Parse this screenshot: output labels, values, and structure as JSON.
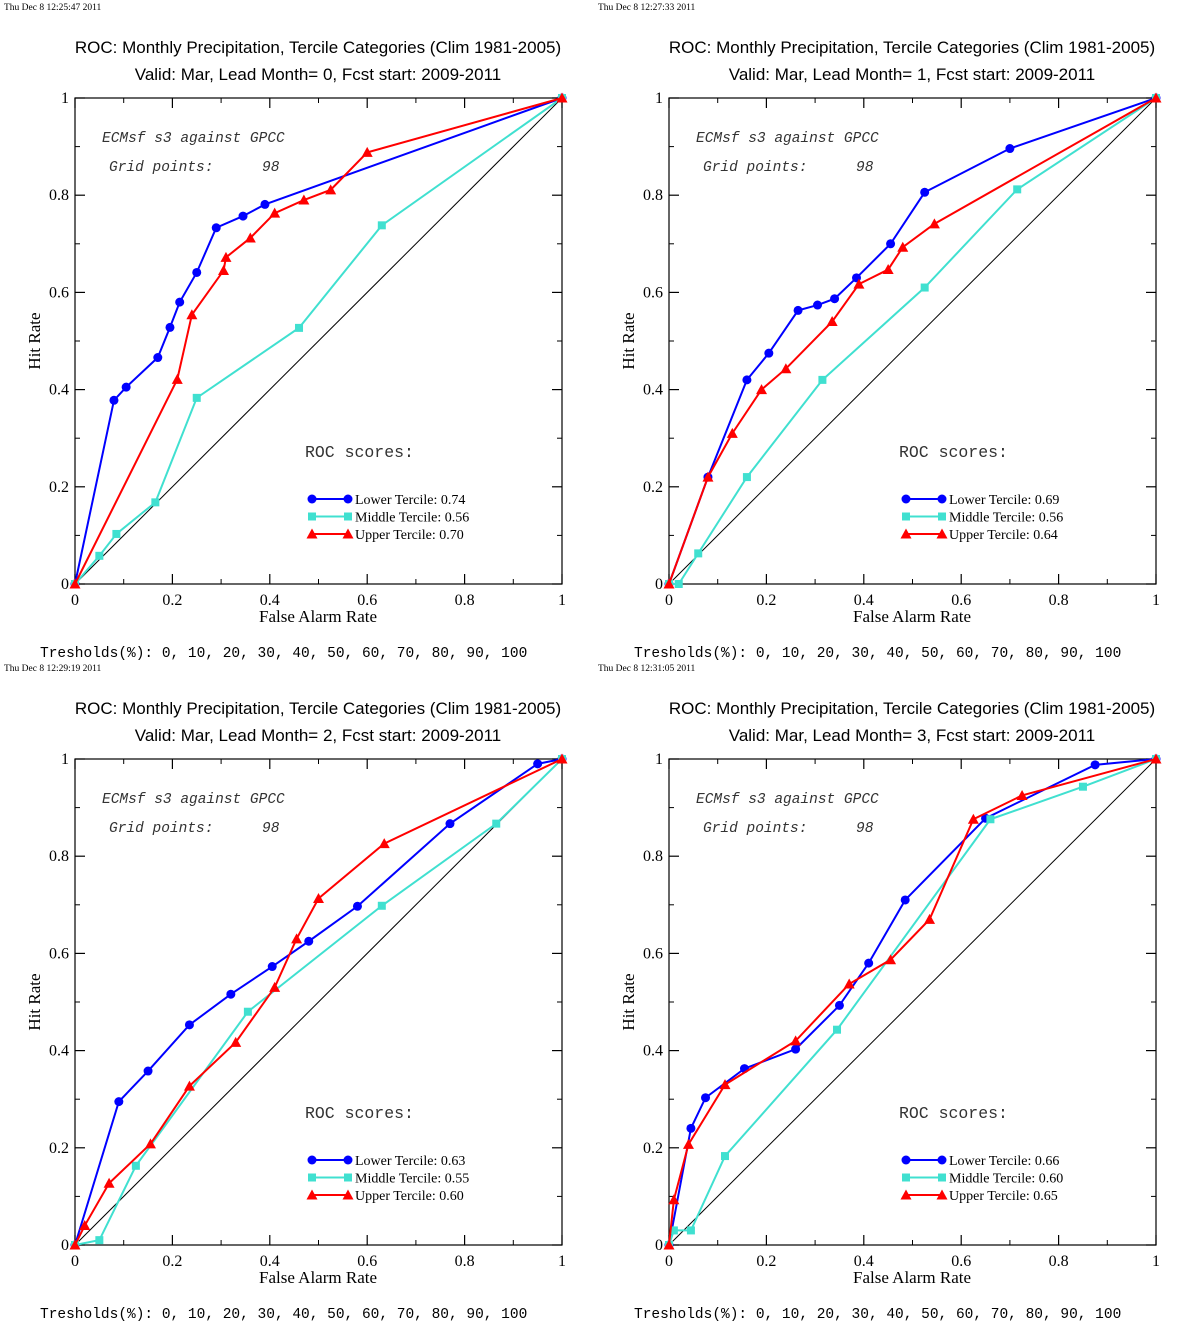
{
  "colors": {
    "lower": "#0000ff",
    "middle": "#40e0d0",
    "upper": "#ff0000",
    "axis": "#000000",
    "diagonal": "#000000"
  },
  "chart_data": [
    {
      "type": "line",
      "timestamp": "Thu Dec  8 12:25:47 2011",
      "title": "ROC: Monthly Precipitation, Tercile Categories (Clim 1981-2005)",
      "subtitle": "Valid: Mar, Lead Month= 0, Fcst start: 2009-2011",
      "xlabel": "False Alarm Rate",
      "ylabel": "Hit Rate",
      "xlim": [
        0,
        1
      ],
      "ylim": [
        0,
        1
      ],
      "x_ticks": [
        "0",
        "0.2",
        "0.4",
        "0.6",
        "0.8",
        "1"
      ],
      "y_ticks": [
        "0",
        "0.2",
        "0.4",
        "0.6",
        "0.8",
        "1"
      ],
      "annotation_model": "ECMsf s3 against GPCC",
      "annotation_grid_label": "Grid points:",
      "annotation_grid_value": "98",
      "scores_heading": "ROC scores:",
      "thresholds": "Tresholds(%): 0, 10, 20, 30, 40, 50, 60, 70, 80, 90, 100",
      "series": [
        {
          "name": "Lower Tercile: 0.74",
          "key": "lower",
          "marker": "circle",
          "x": [
            0,
            0.08,
            0.105,
            0.17,
            0.195,
            0.215,
            0.25,
            0.29,
            0.345,
            0.39,
            1
          ],
          "y": [
            0,
            0.378,
            0.405,
            0.466,
            0.528,
            0.58,
            0.641,
            0.733,
            0.757,
            0.781,
            1
          ]
        },
        {
          "name": "Middle Tercile: 0.56",
          "key": "middle",
          "marker": "square",
          "x": [
            0,
            0.05,
            0.085,
            0.165,
            0.25,
            0.46,
            0.63,
            1
          ],
          "y": [
            0,
            0.058,
            0.103,
            0.168,
            0.383,
            0.527,
            0.738,
            1
          ]
        },
        {
          "name": "Upper Tercile: 0.70",
          "key": "upper",
          "marker": "triangle",
          "x": [
            0,
            0.21,
            0.24,
            0.305,
            0.31,
            0.36,
            0.41,
            0.47,
            0.525,
            0.6,
            1
          ],
          "y": [
            0,
            0.421,
            0.554,
            0.645,
            0.672,
            0.712,
            0.763,
            0.79,
            0.811,
            0.888,
            1
          ]
        }
      ]
    },
    {
      "type": "line",
      "timestamp": "Thu Dec  8 12:27:33 2011",
      "title": "ROC: Monthly Precipitation, Tercile Categories (Clim 1981-2005)",
      "subtitle": "Valid: Mar, Lead Month= 1, Fcst start: 2009-2011",
      "xlabel": "False Alarm Rate",
      "ylabel": "Hit Rate",
      "xlim": [
        0,
        1
      ],
      "ylim": [
        0,
        1
      ],
      "x_ticks": [
        "0",
        "0.2",
        "0.4",
        "0.6",
        "0.8",
        "1"
      ],
      "y_ticks": [
        "0",
        "0.2",
        "0.4",
        "0.6",
        "0.8",
        "1"
      ],
      "annotation_model": "ECMsf s3 against GPCC",
      "annotation_grid_label": "Grid points:",
      "annotation_grid_value": "98",
      "scores_heading": "ROC scores:",
      "thresholds": "Tresholds(%): 0, 10, 20, 30, 40, 50, 60, 70, 80, 90, 100",
      "series": [
        {
          "name": "Lower Tercile: 0.69",
          "key": "lower",
          "marker": "circle",
          "x": [
            0,
            0.08,
            0.16,
            0.205,
            0.265,
            0.305,
            0.34,
            0.385,
            0.455,
            0.525,
            0.7,
            1
          ],
          "y": [
            0,
            0.22,
            0.42,
            0.475,
            0.563,
            0.574,
            0.587,
            0.63,
            0.7,
            0.806,
            0.896,
            1
          ]
        },
        {
          "name": "Middle Tercile: 0.56",
          "key": "middle",
          "marker": "square",
          "x": [
            0,
            0.02,
            0.06,
            0.16,
            0.315,
            0.525,
            0.715,
            1
          ],
          "y": [
            0,
            0,
            0.063,
            0.22,
            0.42,
            0.61,
            0.812,
            1
          ]
        },
        {
          "name": "Upper Tercile: 0.64",
          "key": "upper",
          "marker": "triangle",
          "x": [
            0,
            0.08,
            0.13,
            0.19,
            0.24,
            0.335,
            0.39,
            0.45,
            0.48,
            0.545,
            1
          ],
          "y": [
            0,
            0.22,
            0.31,
            0.4,
            0.443,
            0.54,
            0.617,
            0.647,
            0.693,
            0.741,
            1
          ]
        }
      ]
    },
    {
      "type": "line",
      "timestamp": "Thu Dec  8 12:29:19 2011",
      "title": "ROC: Monthly Precipitation, Tercile Categories (Clim 1981-2005)",
      "subtitle": "Valid: Mar, Lead Month= 2, Fcst start: 2009-2011",
      "xlabel": "False Alarm Rate",
      "ylabel": "Hit Rate",
      "xlim": [
        0,
        1
      ],
      "ylim": [
        0,
        1
      ],
      "x_ticks": [
        "0",
        "0.2",
        "0.4",
        "0.6",
        "0.8",
        "1"
      ],
      "y_ticks": [
        "0",
        "0.2",
        "0.4",
        "0.6",
        "0.8",
        "1"
      ],
      "annotation_model": "ECMsf s3 against GPCC",
      "annotation_grid_label": "Grid points:",
      "annotation_grid_value": "98",
      "scores_heading": "ROC scores:",
      "thresholds": "Tresholds(%): 0, 10, 20, 30, 40, 50, 60, 70, 80, 90, 100",
      "series": [
        {
          "name": "Lower Tercile: 0.63",
          "key": "lower",
          "marker": "circle",
          "x": [
            0,
            0.09,
            0.15,
            0.235,
            0.32,
            0.405,
            0.48,
            0.58,
            0.77,
            0.95,
            1
          ],
          "y": [
            0,
            0.295,
            0.358,
            0.453,
            0.516,
            0.573,
            0.625,
            0.697,
            0.867,
            0.99,
            1
          ]
        },
        {
          "name": "Middle Tercile: 0.55",
          "key": "middle",
          "marker": "square",
          "x": [
            0,
            0.05,
            0.125,
            0.355,
            0.63,
            0.865,
            1
          ],
          "y": [
            0,
            0.01,
            0.163,
            0.48,
            0.698,
            0.867,
            1
          ]
        },
        {
          "name": "Upper Tercile: 0.60",
          "key": "upper",
          "marker": "triangle",
          "x": [
            0,
            0.02,
            0.07,
            0.155,
            0.235,
            0.33,
            0.41,
            0.455,
            0.5,
            0.635,
            1
          ],
          "y": [
            0,
            0.04,
            0.127,
            0.208,
            0.327,
            0.417,
            0.53,
            0.63,
            0.713,
            0.826,
            1
          ]
        }
      ]
    },
    {
      "type": "line",
      "timestamp": "Thu Dec  8 12:31:05 2011",
      "title": "ROC: Monthly Precipitation, Tercile Categories (Clim 1981-2005)",
      "subtitle": "Valid: Mar, Lead Month= 3, Fcst start: 2009-2011",
      "xlabel": "False Alarm Rate",
      "ylabel": "Hit Rate",
      "xlim": [
        0,
        1
      ],
      "ylim": [
        0,
        1
      ],
      "x_ticks": [
        "0",
        "0.2",
        "0.4",
        "0.6",
        "0.8",
        "1"
      ],
      "y_ticks": [
        "0",
        "0.2",
        "0.4",
        "0.6",
        "0.8",
        "1"
      ],
      "annotation_model": "ECMsf s3 against GPCC",
      "annotation_grid_label": "Grid points:",
      "annotation_grid_value": "98",
      "scores_heading": "ROC scores:",
      "thresholds": "Tresholds(%): 0, 10, 20, 30, 40, 50, 60, 70, 80, 90, 100",
      "series": [
        {
          "name": "Lower Tercile: 0.66",
          "key": "lower",
          "marker": "circle",
          "x": [
            0,
            0.045,
            0.075,
            0.155,
            0.26,
            0.35,
            0.41,
            0.485,
            0.65,
            0.875,
            1
          ],
          "y": [
            0,
            0.24,
            0.303,
            0.363,
            0.403,
            0.493,
            0.58,
            0.71,
            0.878,
            0.988,
            1
          ]
        },
        {
          "name": "Middle Tercile: 0.60",
          "key": "middle",
          "marker": "square",
          "x": [
            0,
            0.01,
            0.045,
            0.115,
            0.345,
            0.66,
            0.85,
            1
          ],
          "y": [
            0,
            0.03,
            0.03,
            0.183,
            0.443,
            0.876,
            0.943,
            1
          ]
        },
        {
          "name": "Upper Tercile: 0.65",
          "key": "upper",
          "marker": "triangle",
          "x": [
            0,
            0.01,
            0.04,
            0.115,
            0.26,
            0.37,
            0.455,
            0.535,
            0.625,
            0.725,
            1
          ],
          "y": [
            0,
            0.093,
            0.207,
            0.33,
            0.42,
            0.537,
            0.587,
            0.67,
            0.876,
            0.925,
            1
          ]
        }
      ]
    }
  ]
}
